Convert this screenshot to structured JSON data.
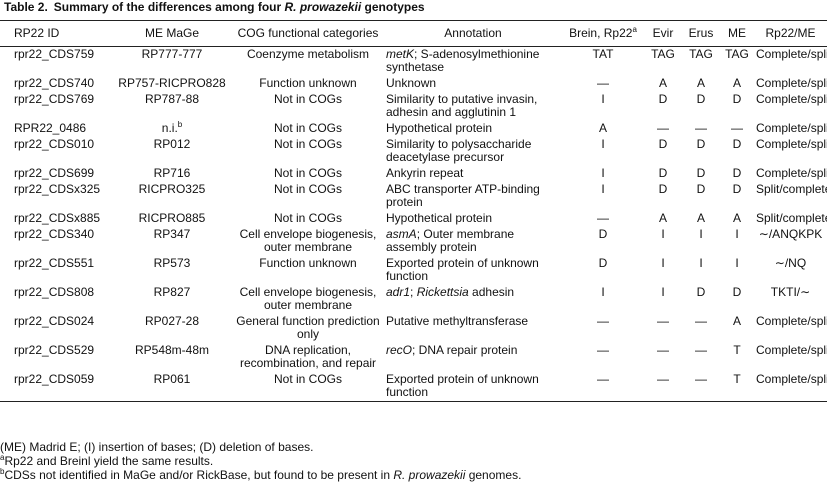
{
  "title": [
    {
      "text": "Table 2.",
      "style": "bold"
    },
    {
      "text": "Summary of the differences among four ",
      "style": "bold"
    },
    {
      "text": "R. prowazekii",
      "style": "bold-italic"
    },
    {
      "text": " genotypes",
      "style": "bold"
    }
  ],
  "table": {
    "header": [
      "RP22 ID",
      "ME MaGe",
      "COG functional categories",
      "Annotation",
      [
        {
          "text": "Brein, Rp22",
          "style": "plain"
        },
        {
          "text": "a",
          "style": "sup"
        }
      ],
      "Evir",
      "Erus",
      "ME",
      "Rp22/ME"
    ],
    "rows": [
      [
        "rpr22_CDS759",
        "RP777-777",
        "Coenzyme metabolism",
        [
          {
            "text": "metK",
            "style": "italic"
          },
          {
            "text": "; S-adenosylmethionine synthetase",
            "style": "plain"
          }
        ],
        "TAT",
        "TAG",
        "TAG",
        "TAG",
        "Complete/split"
      ],
      [
        "rpr22_CDS740",
        "RP757-RICPRO828",
        "Function unknown",
        "Unknown",
        "—",
        "A",
        "A",
        "A",
        "Complete/split"
      ],
      [
        "rpr22_CDS769",
        "RP787-88",
        "Not in COGs",
        "Similarity to putative invasin, adhesin and agglutinin 1",
        "I",
        "D",
        "D",
        "D",
        "Complete/split"
      ],
      [
        "RPR22_0486",
        [
          {
            "text": "n.i.",
            "style": "plain"
          },
          {
            "text": "b",
            "style": "sup"
          }
        ],
        "Not in COGs",
        "Hypothetical protein",
        "A",
        "—",
        "—",
        "—",
        "Complete/split"
      ],
      [
        "rpr22_CDS010",
        "RP012",
        "Not in COGs",
        "Similarity to polysaccharide deacetylase precursor",
        "I",
        "D",
        "D",
        "D",
        "Complete/split"
      ],
      [
        "rpr22_CDS699",
        "RP716",
        "Not in COGs",
        "Ankyrin repeat",
        "I",
        "D",
        "D",
        "D",
        "Complete/split"
      ],
      [
        "rpr22_CDSx325",
        "RICPRO325",
        "Not in COGs",
        "ABC transporter ATP-binding protein",
        "I",
        "D",
        "D",
        "D",
        "Split/complete"
      ],
      [
        "rpr22_CDSx885",
        "RICPRO885",
        "Not in COGs",
        "Hypothetical protein",
        "—",
        "A",
        "A",
        "A",
        "Split/complete"
      ],
      [
        "rpr22_CDS340",
        "RP347",
        "Cell envelope biogenesis, outer membrane",
        [
          {
            "text": "asmA",
            "style": "italic"
          },
          {
            "text": "; Outer membrane assembly protein",
            "style": "plain"
          }
        ],
        "D",
        "I",
        "I",
        "I",
        "∼/ANQKPK"
      ],
      [
        "rpr22_CDS551",
        "RP573",
        "Function unknown",
        "Exported protein of unknown function",
        "D",
        "I",
        "I",
        "I",
        "∼/NQ"
      ],
      [
        "rpr22_CDS808",
        "RP827",
        "Cell envelope biogenesis, outer membrane",
        [
          {
            "text": "adr1",
            "style": "italic"
          },
          {
            "text": "; ",
            "style": "plain"
          },
          {
            "text": "Rickettsia",
            "style": "italic"
          },
          {
            "text": " adhesin",
            "style": "plain"
          }
        ],
        "I",
        "I",
        "D",
        "D",
        "TKTI/∼"
      ],
      [
        "rpr22_CDS024",
        "RP027-28",
        "General function prediction only",
        "Putative methyltransferase",
        "—",
        "—",
        "—",
        "A",
        "Complete/split"
      ],
      [
        "rpr22_CDS529",
        "RP548m-48m",
        "DNA replication, recombination, and repair",
        [
          {
            "text": "recO",
            "style": "italic"
          },
          {
            "text": "; DNA repair protein",
            "style": "plain"
          }
        ],
        "—",
        "—",
        "—",
        "T",
        "Complete/split"
      ],
      [
        "rpr22_CDS059",
        "RP061",
        "Not in COGs",
        "Exported protein of unknown function",
        "—",
        "—",
        "—",
        "T",
        "Complete/split"
      ]
    ]
  },
  "footnotes": [
    "(ME) Madrid E; (I) insertion of bases; (D) deletion of bases.",
    [
      {
        "text": "a",
        "style": "sup"
      },
      {
        "text": "Rp22 and Breinl yield the same results.",
        "style": "plain"
      }
    ],
    [
      {
        "text": "b",
        "style": "sup"
      },
      {
        "text": "CDSs not identified in MaGe and/or RickBase, but found to be present in ",
        "style": "plain"
      },
      {
        "text": "R. prowazekii",
        "style": "italic"
      },
      {
        "text": " genomes.",
        "style": "plain"
      }
    ]
  ]
}
